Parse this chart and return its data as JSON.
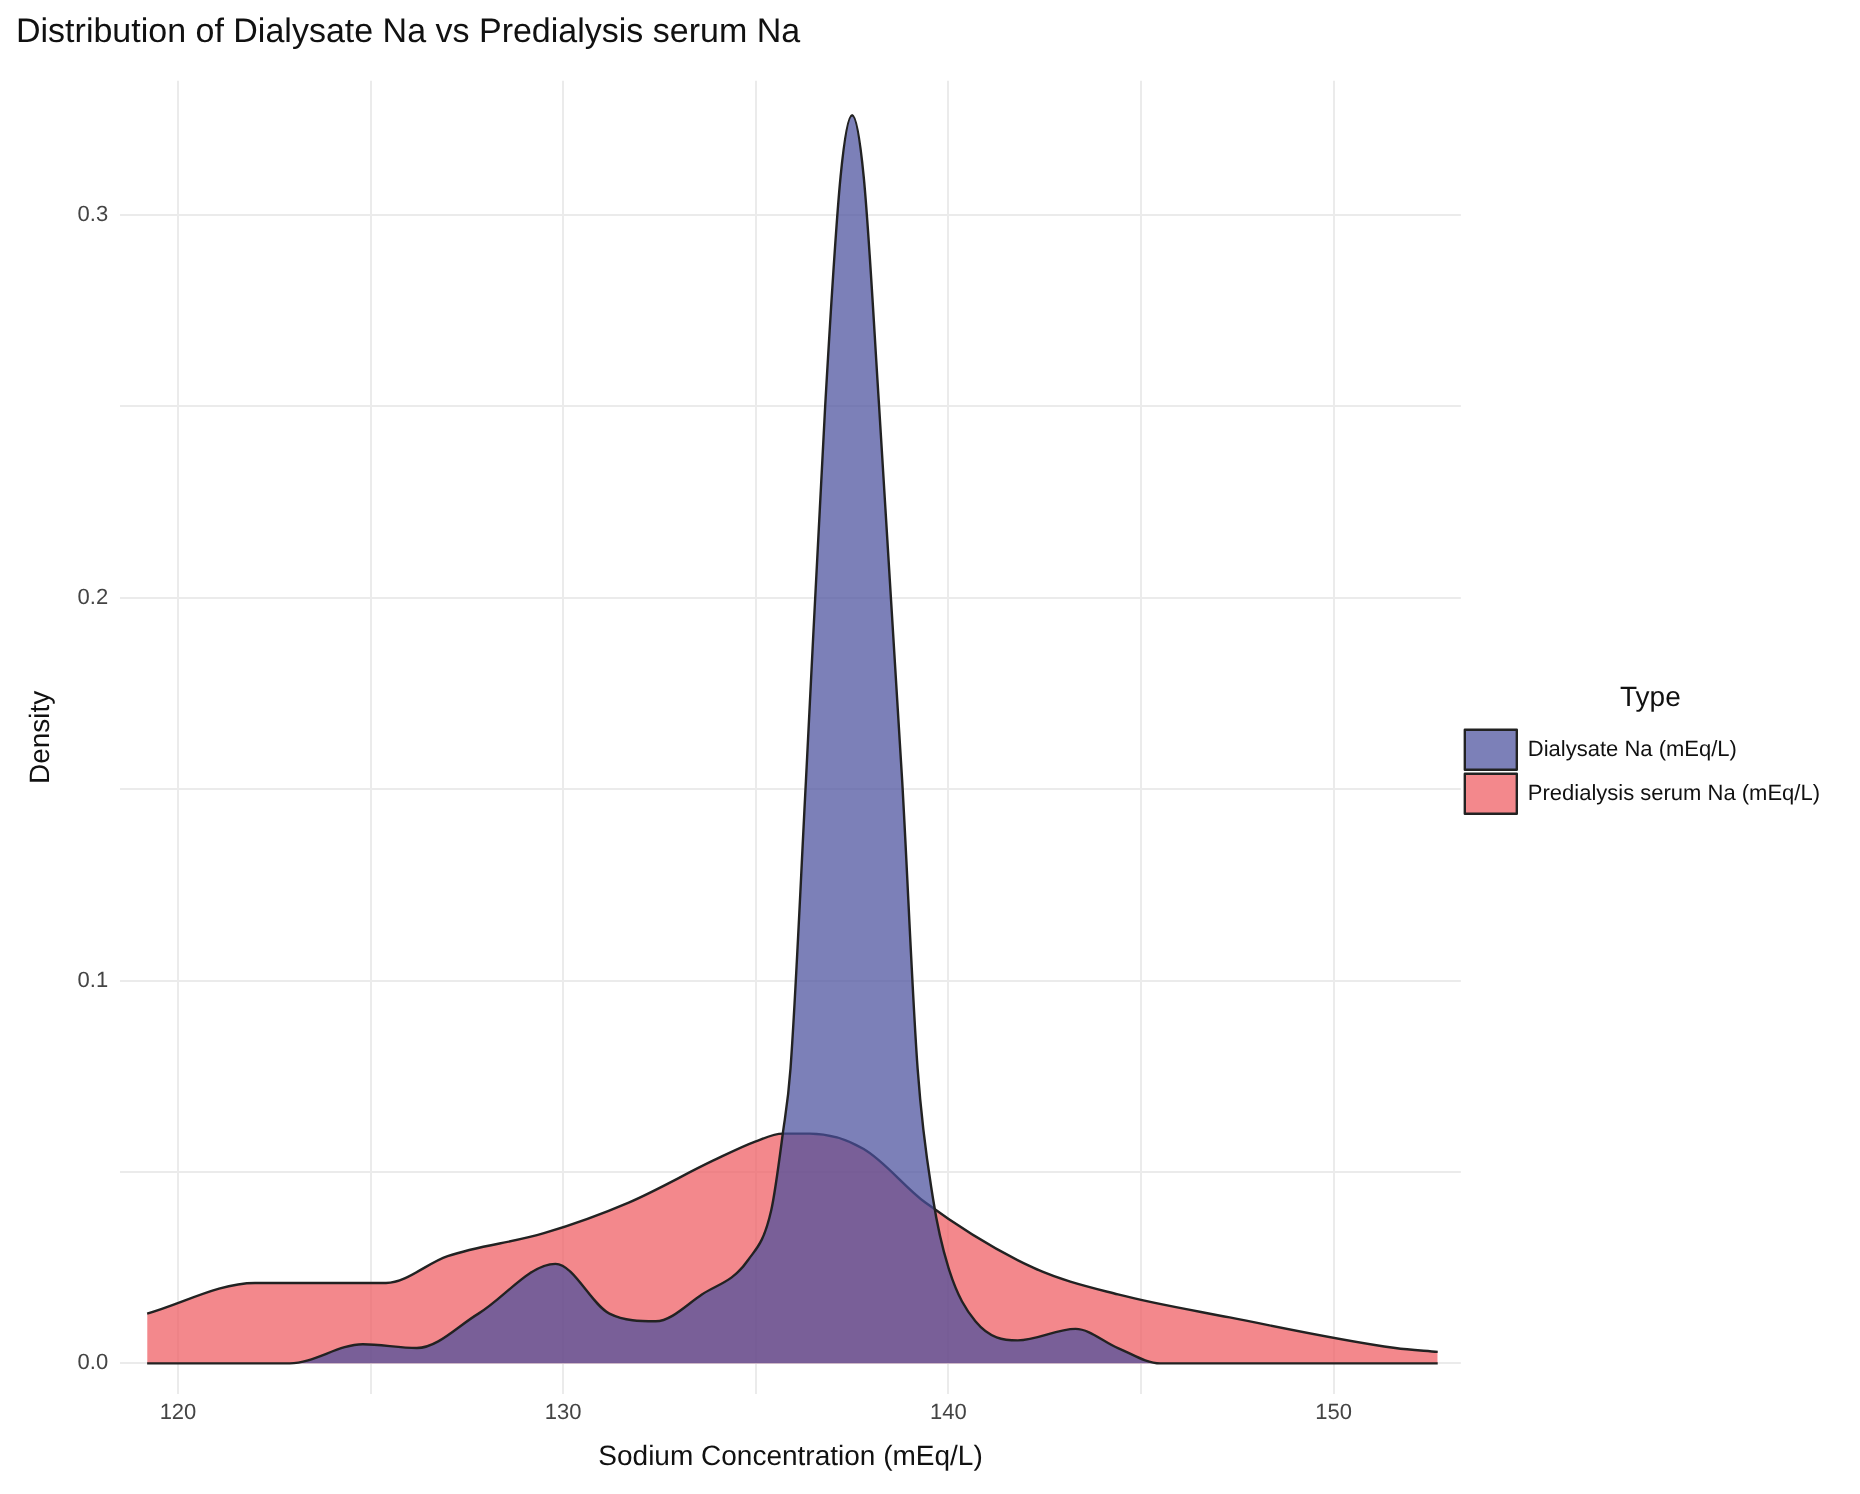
{
  "chart_data": {
    "type": "area",
    "title": "Distribution of Dialysate Na vs Predialysis serum Na",
    "xlabel": "Sodium Concentration (mEq/L)",
    "ylabel": "Density",
    "legend_title": "Type",
    "legend": "right",
    "grid": true,
    "marker": "none",
    "xlim": [
      118.5,
      153.3
    ],
    "xticks": [
      {
        "value": 120,
        "label": "120"
      },
      {
        "value": 125,
        "label": null
      },
      {
        "value": 130,
        "label": "130"
      },
      {
        "value": 135,
        "label": null
      },
      {
        "value": 140,
        "label": "140"
      },
      {
        "value": 145,
        "label": null
      },
      {
        "value": 150,
        "label": "150"
      }
    ],
    "ylim": [
      -0.008,
      0.335
    ],
    "yticks": [
      {
        "value": 0,
        "label": "0.0"
      },
      {
        "value": 0.05,
        "label": null
      },
      {
        "value": 0.1,
        "label": "0.1"
      },
      {
        "value": 0.15,
        "label": null
      },
      {
        "value": 0.2,
        "label": "0.2"
      },
      {
        "value": 0.25,
        "label": null
      },
      {
        "value": 0.3,
        "label": "0.3"
      }
    ],
    "series": [
      {
        "name": "Dialysate Na (mEq/L)",
        "color": "#4a4f9c",
        "x": [
          119.2,
          122.9,
          124.8,
          126.2,
          127.8,
          129.8,
          131.2,
          132.4,
          133.6,
          134.8,
          135.4,
          135.7,
          135.9,
          136.3,
          136.8,
          137.2,
          137.5,
          137.8,
          138.2,
          138.8,
          139.2,
          139.6,
          140.0,
          140.7,
          141.8,
          143.3,
          144.4,
          145.5,
          152.7
        ],
        "values": [
          0,
          0,
          0.005,
          0.004,
          0.013,
          0.026,
          0.013,
          0.011,
          0.018,
          0.027,
          0.04,
          0.06,
          0.077,
          0.152,
          0.25,
          0.31,
          0.326,
          0.31,
          0.25,
          0.152,
          0.077,
          0.043,
          0.025,
          0.011,
          0.006,
          0.009,
          0.004,
          0,
          0
        ]
      },
      {
        "name": "Predialysis serum Na (mEq/L)",
        "color": "#ee5a5f",
        "x": [
          119.2,
          122.0,
          125.4,
          127.0,
          129.5,
          131.7,
          133.9,
          135.0,
          135.7,
          136.4,
          137.8,
          139.4,
          142.2,
          144.4,
          147.3,
          151.6,
          152.7
        ],
        "values": [
          0.013,
          0.021,
          0.021,
          0.028,
          0.034,
          0.042,
          0.053,
          0.058,
          0.06,
          0.06,
          0.056,
          0.042,
          0.025,
          0.018,
          0.012,
          0.004,
          0.003
        ]
      }
    ]
  }
}
